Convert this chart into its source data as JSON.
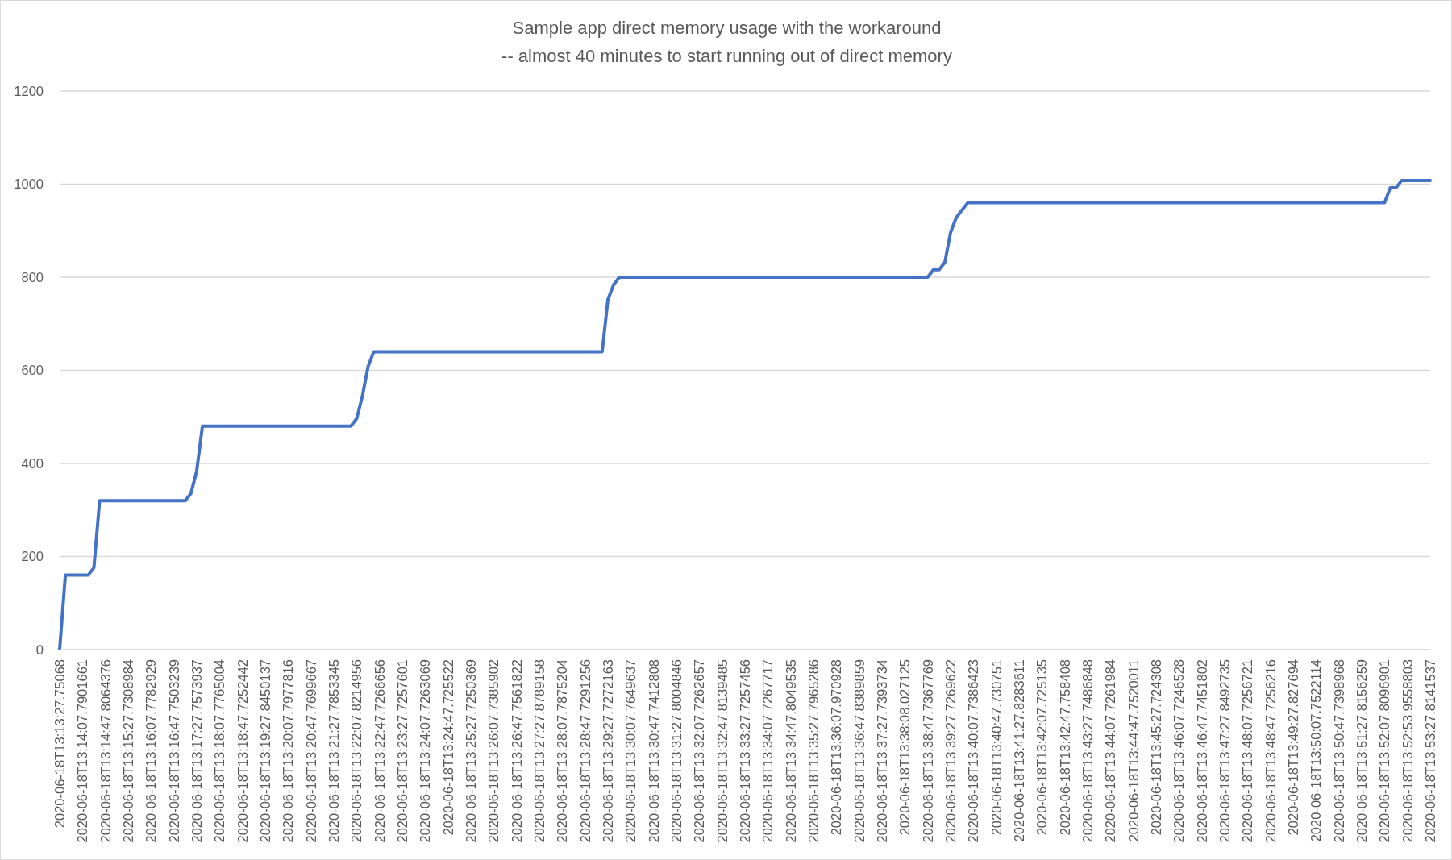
{
  "chart_data": {
    "type": "line",
    "title": "Sample app direct memory usage with the workaround",
    "subtitle": "-- almost 40 minutes to start running out of direct memory",
    "categories": [
      "2020-06-18T13:13:27.75068",
      null,
      null,
      null,
      "2020-06-18T13:14:07.7901661",
      null,
      null,
      null,
      "2020-06-18T13:14:47.8064376",
      null,
      null,
      null,
      "2020-06-18T13:15:27.7308984",
      null,
      null,
      null,
      "2020-06-18T13:16:07.7782929",
      null,
      null,
      null,
      "2020-06-18T13:16:47.7503239",
      null,
      null,
      null,
      "2020-06-18T13:17:27.7573937",
      null,
      null,
      null,
      "2020-06-18T13:18:07.7765004",
      null,
      null,
      null,
      "2020-06-18T13:18:47.7252442",
      null,
      null,
      null,
      "2020-06-18T13:19:27.8450137",
      null,
      null,
      null,
      "2020-06-18T13:20:07.7977816",
      null,
      null,
      null,
      "2020-06-18T13:20:47.7699667",
      null,
      null,
      null,
      "2020-06-18T13:21:27.7853345",
      null,
      null,
      null,
      "2020-06-18T13:22:07.8214956",
      null,
      null,
      null,
      "2020-06-18T13:22:47.7266656",
      null,
      null,
      null,
      "2020-06-18T13:23:27.7257601",
      null,
      null,
      null,
      "2020-06-18T13:24:07.7263069",
      null,
      null,
      null,
      "2020-06-18T13:24:47.725522",
      null,
      null,
      null,
      "2020-06-18T13:25:27.7250369",
      null,
      null,
      null,
      "2020-06-18T13:26:07.7385902",
      null,
      null,
      null,
      "2020-06-18T13:26:47.7561822",
      null,
      null,
      null,
      "2020-06-18T13:27:27.8789158",
      null,
      null,
      null,
      "2020-06-18T13:28:07.7875204",
      null,
      null,
      null,
      "2020-06-18T13:28:47.7291256",
      null,
      null,
      null,
      "2020-06-18T13:29:27.7272163",
      null,
      null,
      null,
      "2020-06-18T13:30:07.7649637",
      null,
      null,
      null,
      "2020-06-18T13:30:47.7412808",
      null,
      null,
      null,
      "2020-06-18T13:31:27.8004846",
      null,
      null,
      null,
      "2020-06-18T13:32:07.7262657",
      null,
      null,
      null,
      "2020-06-18T13:32:47.8139485",
      null,
      null,
      null,
      "2020-06-18T13:33:27.7257456",
      null,
      null,
      null,
      "2020-06-18T13:34:07.7267717",
      null,
      null,
      null,
      "2020-06-18T13:34:47.8049535",
      null,
      null,
      null,
      "2020-06-18T13:35:27.7965286",
      null,
      null,
      null,
      "2020-06-18T13:36:07.970928",
      null,
      null,
      null,
      "2020-06-18T13:36:47.8389859",
      null,
      null,
      null,
      "2020-06-18T13:37:27.7393734",
      null,
      null,
      null,
      "2020-06-18T13:38:08.027125",
      null,
      null,
      null,
      "2020-06-18T13:38:47.7367769",
      null,
      null,
      null,
      "2020-06-18T13:39:27.7269622",
      null,
      null,
      null,
      "2020-06-18T13:40:07.7386423",
      null,
      null,
      null,
      "2020-06-18T13:40:47.730751",
      null,
      null,
      null,
      "2020-06-18T13:41:27.8283611",
      null,
      null,
      null,
      "2020-06-18T13:42:07.725135",
      null,
      null,
      null,
      "2020-06-18T13:42:47.758408",
      null,
      null,
      null,
      "2020-06-18T13:43:27.7486848",
      null,
      null,
      null,
      "2020-06-18T13:44:07.7261984",
      null,
      null,
      null,
      "2020-06-18T13:44:47.7520011",
      null,
      null,
      null,
      "2020-06-18T13:45:27.724308",
      null,
      null,
      null,
      "2020-06-18T13:46:07.7246528",
      null,
      null,
      null,
      "2020-06-18T13:46:47.7451802",
      null,
      null,
      null,
      "2020-06-18T13:47:27.8492735",
      null,
      null,
      null,
      "2020-06-18T13:48:07.7256721",
      null,
      null,
      null,
      "2020-06-18T13:48:47.7256216",
      null,
      null,
      null,
      "2020-06-18T13:49:27.827694",
      null,
      null,
      null,
      "2020-06-18T13:50:07.7522114",
      null,
      null,
      null,
      "2020-06-18T13:50:47.7398968",
      null,
      null,
      null,
      "2020-06-18T13:51:27.8156259",
      null,
      null,
      null,
      "2020-06-18T13:52:07.8096901",
      null,
      null,
      null,
      "2020-06-18T13:52:53.9558803",
      null,
      null,
      null,
      "2020-06-18T13:53:27.8141537"
    ],
    "values": [
      0,
      160,
      160,
      160,
      160,
      160,
      176,
      320,
      320,
      320,
      320,
      320,
      320,
      320,
      320,
      320,
      320,
      320,
      320,
      320,
      320,
      320,
      320,
      336,
      384,
      480,
      480,
      480,
      480,
      480,
      480,
      480,
      480,
      480,
      480,
      480,
      480,
      480,
      480,
      480,
      480,
      480,
      480,
      480,
      480,
      480,
      480,
      480,
      480,
      480,
      480,
      480,
      496,
      544,
      608,
      640,
      640,
      640,
      640,
      640,
      640,
      640,
      640,
      640,
      640,
      640,
      640,
      640,
      640,
      640,
      640,
      640,
      640,
      640,
      640,
      640,
      640,
      640,
      640,
      640,
      640,
      640,
      640,
      640,
      640,
      640,
      640,
      640,
      640,
      640,
      640,
      640,
      640,
      640,
      640,
      640,
      752,
      784,
      800,
      800,
      800,
      800,
      800,
      800,
      800,
      800,
      800,
      800,
      800,
      800,
      800,
      800,
      800,
      800,
      800,
      800,
      800,
      800,
      800,
      800,
      800,
      800,
      800,
      800,
      800,
      800,
      800,
      800,
      800,
      800,
      800,
      800,
      800,
      800,
      800,
      800,
      800,
      800,
      800,
      800,
      800,
      800,
      800,
      800,
      800,
      800,
      800,
      800,
      800,
      800,
      800,
      800,
      800,
      816,
      816,
      832,
      896,
      928,
      944,
      960,
      960,
      960,
      960,
      960,
      960,
      960,
      960,
      960,
      960,
      960,
      960,
      960,
      960,
      960,
      960,
      960,
      960,
      960,
      960,
      960,
      960,
      960,
      960,
      960,
      960,
      960,
      960,
      960,
      960,
      960,
      960,
      960,
      960,
      960,
      960,
      960,
      960,
      960,
      960,
      960,
      960,
      960,
      960,
      960,
      960,
      960,
      960,
      960,
      960,
      960,
      960,
      960,
      960,
      960,
      960,
      960,
      960,
      960,
      960,
      960,
      960,
      960,
      960,
      960,
      960,
      960,
      960,
      960,
      960,
      960,
      960,
      960,
      960,
      992,
      992,
      1008,
      1008,
      1008,
      1008,
      1008,
      1008
    ],
    "color": "#4472c4",
    "ylim": [
      0,
      1200
    ],
    "yticks": [
      0,
      200,
      400,
      600,
      800,
      1000,
      1200
    ],
    "grid": "y",
    "marker": "none",
    "line_style": "solid"
  }
}
